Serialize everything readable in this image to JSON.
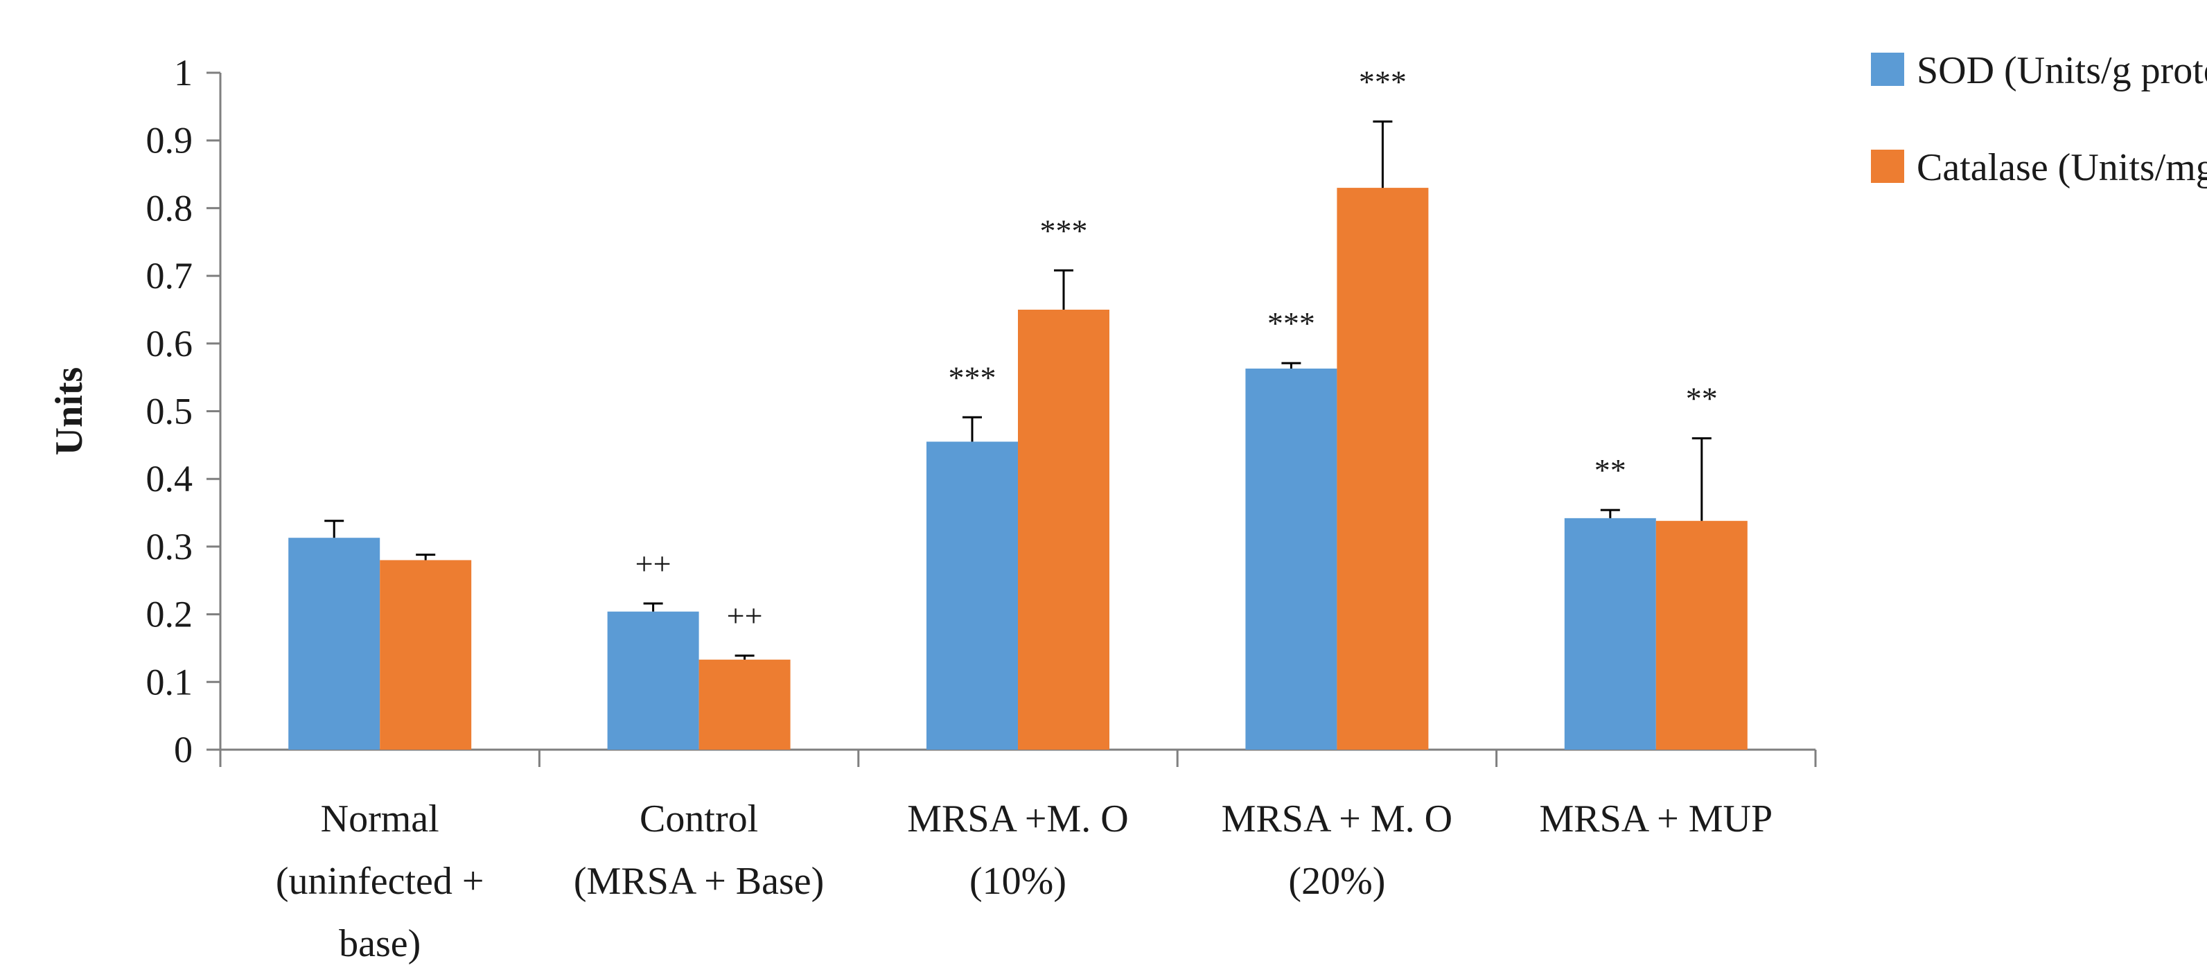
{
  "chart_data": {
    "type": "bar",
    "ylabel": "Units",
    "ylim": [
      0,
      1
    ],
    "ytick_step": 0.1,
    "ytick_labels": [
      "0",
      "0.1",
      "0.2",
      "0.3",
      "0.4",
      "0.5",
      "0.6",
      "0.7",
      "0.8",
      "0.9",
      "1"
    ],
    "grid": false,
    "legend_position": "top-right",
    "categories": [
      [
        "Normal",
        "(uninfected +",
        "base)"
      ],
      [
        "Control",
        "(MRSA + Base)"
      ],
      [
        "MRSA +M. O",
        "(10%)"
      ],
      [
        "MRSA + M. O",
        "(20%)"
      ],
      [
        "MRSA + MUP"
      ]
    ],
    "series": [
      {
        "name": "SOD (Units/g protein)",
        "color": "#5B9BD5",
        "values": [
          0.313,
          0.204,
          0.455,
          0.563,
          0.342
        ],
        "errors": [
          0.025,
          0.012,
          0.036,
          0.008,
          0.012
        ],
        "annotations": [
          "",
          "++",
          "***",
          "***",
          "**"
        ]
      },
      {
        "name": "Catalase (Units/mg protein)",
        "color": "#ED7D31",
        "values": [
          0.28,
          0.133,
          0.65,
          0.83,
          0.338
        ],
        "errors": [
          0.008,
          0.006,
          0.058,
          0.098,
          0.122
        ],
        "annotations": [
          "",
          "++",
          "***",
          "***",
          "**"
        ]
      }
    ]
  }
}
